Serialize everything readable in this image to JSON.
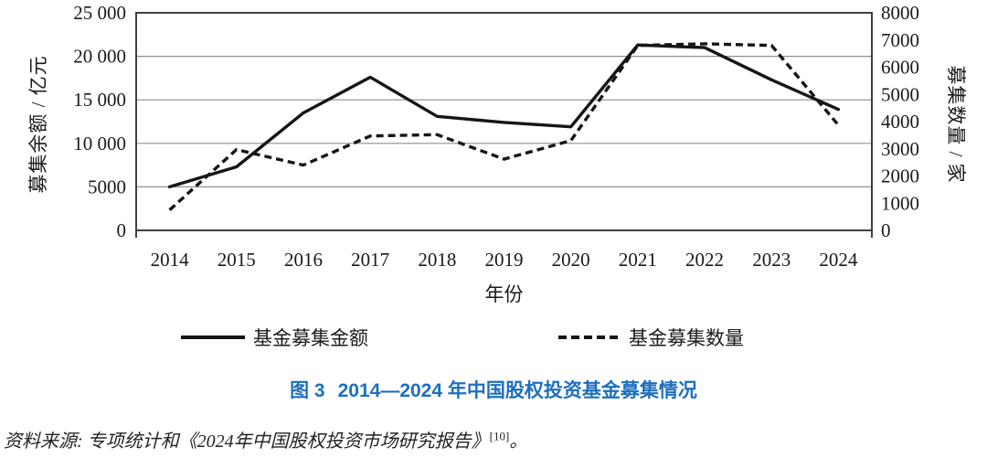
{
  "chart_data": {
    "type": "line",
    "title": "图 3 2014—2024 年中国股权投资基金募集情况",
    "categories": [
      "2014",
      "2015",
      "2016",
      "2017",
      "2018",
      "2019",
      "2020",
      "2021",
      "2022",
      "2023",
      "2024"
    ],
    "xlabel": "年份",
    "grid": "horizontal-only",
    "legend_position": "bottom",
    "y_left": {
      "label": "募集余额 / 亿元",
      "min": 0,
      "max": 25000,
      "tick_labels": [
        "0",
        "5000",
        "10 000",
        "15 000",
        "20 000",
        "25 000"
      ]
    },
    "y_right": {
      "label": "募集数量 / 家",
      "min": 0,
      "max": 8000,
      "tick_labels": [
        "0",
        "1000",
        "2000",
        "3000",
        "4000",
        "5000",
        "6000",
        "7000",
        "8000"
      ]
    },
    "series": [
      {
        "name": "基金募集金额",
        "axis": "left",
        "unit": "亿元",
        "line_style": "solid",
        "values": [
          5000,
          7300,
          13500,
          17600,
          13100,
          12400,
          11900,
          21300,
          21000,
          17300,
          13900
        ]
      },
      {
        "name": "基金募集数量",
        "axis": "right",
        "unit": "家",
        "line_style": "dashed",
        "values": [
          750,
          2970,
          2400,
          3470,
          3520,
          2620,
          3300,
          6800,
          6860,
          6800,
          3870
        ]
      }
    ]
  },
  "caption": {
    "figure_label": "图 3",
    "text": "2014—2024 年中国股权投资基金募集情况"
  },
  "source_note": {
    "text": "资料来源: 专项统计和《2024年中国股权投资市场研究报告》",
    "reference": "[10]",
    "period": "。"
  },
  "colors": {
    "caption_blue": "#1e6fbe",
    "line_black": "#161616",
    "grid_gray": "#8f8f8f",
    "frame_gray": "#3f3f3f",
    "text": "#1a1a1a"
  }
}
